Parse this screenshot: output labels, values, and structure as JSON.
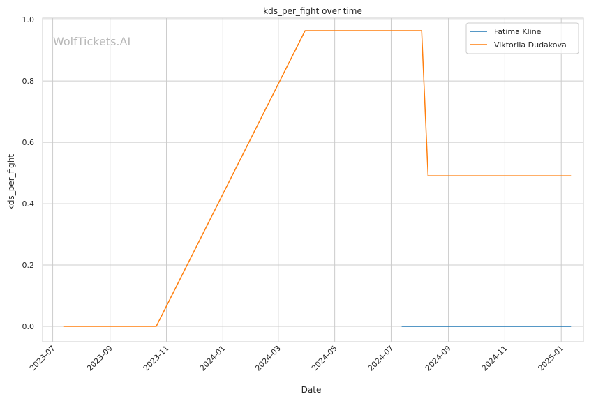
{
  "chart_data": {
    "type": "line",
    "title": "kds_per_fight over time",
    "xlabel": "Date",
    "ylabel": "kds_per_fight",
    "watermark": "WolfTickets.AI",
    "x_type": "date",
    "xlim": [
      "2023-06-20",
      "2025-01-25"
    ],
    "ylim": [
      -0.05,
      1.005
    ],
    "x_ticks": [
      "2023-07-01",
      "2023-09-01",
      "2023-11-01",
      "2024-01-01",
      "2024-03-01",
      "2024-05-01",
      "2024-07-01",
      "2024-09-01",
      "2024-11-01",
      "2025-01-01"
    ],
    "x_tick_labels": [
      "2023-07",
      "2023-09",
      "2023-11",
      "2024-01",
      "2024-03",
      "2024-05",
      "2024-07",
      "2024-09",
      "2024-11",
      "2025-01"
    ],
    "y_ticks": [
      0.0,
      0.2,
      0.4,
      0.6,
      0.8,
      1.0
    ],
    "y_tick_labels": [
      "0.0",
      "0.2",
      "0.4",
      "0.6",
      "0.8",
      "1.0"
    ],
    "grid": true,
    "legend_position": "top-right",
    "series": [
      {
        "name": "Fatima Kline",
        "color": "#1f77b4",
        "points": [
          {
            "x": "2024-07-13",
            "y": 0.0
          },
          {
            "x": "2025-01-11",
            "y": 0.0
          }
        ]
      },
      {
        "name": "Viktoriia Dudakova",
        "color": "#ff7f0e",
        "points": [
          {
            "x": "2023-07-13",
            "y": 0.0
          },
          {
            "x": "2023-10-21",
            "y": 0.0
          },
          {
            "x": "2024-03-30",
            "y": 0.964
          },
          {
            "x": "2024-08-03",
            "y": 0.964
          },
          {
            "x": "2024-08-10",
            "y": 0.491
          },
          {
            "x": "2025-01-11",
            "y": 0.491
          }
        ]
      }
    ]
  }
}
